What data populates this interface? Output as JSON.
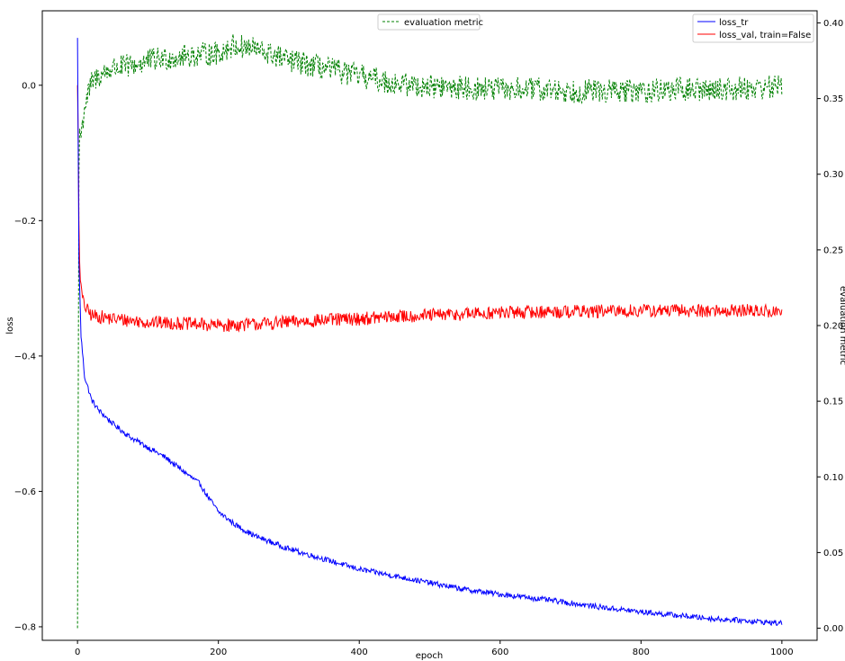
{
  "chart_data": {
    "type": "line",
    "title": "",
    "xlabel": "epoch",
    "ylabel": "loss",
    "ylabel_right": "evaluation metric",
    "xlim": [
      -50,
      1050
    ],
    "ylim": [
      -0.82,
      0.11
    ],
    "ylim_right": [
      -0.008,
      0.408
    ],
    "x_ticks": [
      0,
      200,
      400,
      600,
      800,
      1000
    ],
    "y_ticks": [
      -0.8,
      -0.6,
      -0.4,
      -0.2,
      0.0
    ],
    "y_ticks_right": [
      0.0,
      0.05,
      0.1,
      0.15,
      0.2,
      0.25,
      0.3,
      0.35,
      0.4
    ],
    "x_tick_labels": [
      "0",
      "200",
      "400",
      "600",
      "800",
      "1000"
    ],
    "y_tick_labels": [
      "−0.8",
      "−0.6",
      "−0.4",
      "−0.2",
      "0.0"
    ],
    "y_tick_labels_right": [
      "0.00",
      "0.05",
      "0.10",
      "0.15",
      "0.20",
      "0.25",
      "0.30",
      "0.35",
      "0.40"
    ],
    "grid": false,
    "legends": [
      {
        "placement": "upper-center",
        "entries": [
          "evaluation metric"
        ]
      },
      {
        "placement": "upper-right",
        "entries": [
          "loss_tr",
          "loss_val, train=False"
        ]
      }
    ],
    "series": [
      {
        "name": "loss_tr",
        "axis": "left",
        "color": "#0000ff",
        "style": "solid",
        "x": [
          0,
          2,
          5,
          10,
          20,
          30,
          50,
          75,
          100,
          125,
          150,
          175,
          180,
          200,
          225,
          250,
          300,
          350,
          400,
          450,
          500,
          550,
          600,
          650,
          700,
          750,
          800,
          850,
          900,
          950,
          1000
        ],
        "y": [
          0.07,
          -0.26,
          -0.37,
          -0.43,
          -0.465,
          -0.48,
          -0.5,
          -0.52,
          -0.535,
          -0.55,
          -0.57,
          -0.59,
          -0.6,
          -0.63,
          -0.65,
          -0.665,
          -0.685,
          -0.7,
          -0.715,
          -0.725,
          -0.735,
          -0.745,
          -0.752,
          -0.758,
          -0.765,
          -0.772,
          -0.778,
          -0.783,
          -0.788,
          -0.791,
          -0.795
        ],
        "noise": 0.004
      },
      {
        "name": "loss_val, train=False",
        "axis": "left",
        "color": "#ff0000",
        "style": "solid",
        "x": [
          0,
          1,
          2,
          3,
          5,
          8,
          12,
          20,
          50,
          100,
          150,
          200,
          250,
          300,
          350,
          400,
          450,
          500,
          550,
          600,
          650,
          700,
          750,
          800,
          850,
          900,
          950,
          1000
        ],
        "y": [
          0.0,
          -0.08,
          -0.2,
          -0.26,
          -0.3,
          -0.32,
          -0.33,
          -0.34,
          -0.345,
          -0.35,
          -0.352,
          -0.355,
          -0.353,
          -0.35,
          -0.347,
          -0.345,
          -0.342,
          -0.34,
          -0.338,
          -0.336,
          -0.335,
          -0.334,
          -0.334,
          -0.333,
          -0.333,
          -0.333,
          -0.333,
          -0.335
        ],
        "noise": 0.01
      },
      {
        "name": "evaluation metric",
        "axis": "right",
        "color": "#008000",
        "style": "dashed",
        "x": [
          0,
          1,
          2,
          3,
          5,
          10,
          20,
          30,
          50,
          80,
          100,
          150,
          200,
          220,
          250,
          300,
          350,
          400,
          450,
          500,
          550,
          600,
          650,
          700,
          750,
          800,
          850,
          900,
          950,
          1000
        ],
        "y": [
          0.0,
          0.15,
          0.3,
          0.33,
          0.325,
          0.345,
          0.36,
          0.365,
          0.37,
          0.372,
          0.375,
          0.378,
          0.38,
          0.385,
          0.383,
          0.375,
          0.37,
          0.365,
          0.36,
          0.358,
          0.357,
          0.356,
          0.356,
          0.355,
          0.355,
          0.355,
          0.356,
          0.356,
          0.357,
          0.358
        ],
        "noise": 0.008
      }
    ]
  }
}
